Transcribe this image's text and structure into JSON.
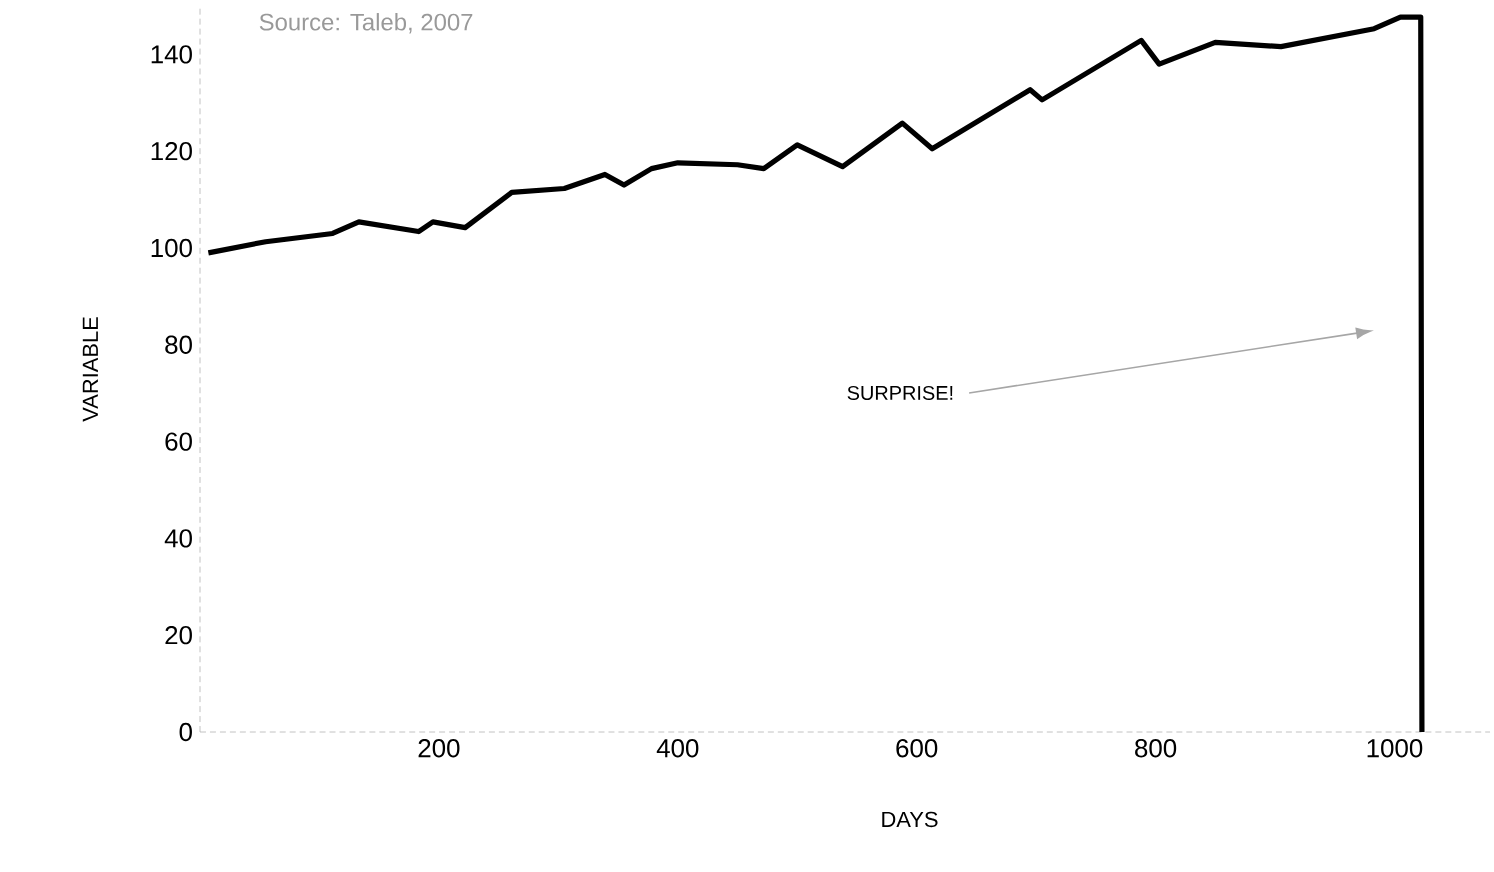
{
  "chart_data": {
    "type": "line",
    "xlabel": "DAYS",
    "ylabel": "VARIABLE",
    "annotations": [
      "Source: Taleb, 2007",
      "SURPRISE!"
    ],
    "x": [
      7,
      55,
      111,
      133,
      183,
      195,
      222,
      261,
      305,
      339,
      355,
      378,
      400,
      450,
      472,
      500,
      538,
      588,
      613,
      695,
      705,
      788,
      803,
      850,
      905,
      983,
      1005,
      1022,
      1023
    ],
    "series": [
      {
        "color": "#000000",
        "values": [
          99,
          101.3,
          103,
          105.4,
          103.4,
          105.4,
          104.2,
          111.5,
          112.3,
          115.2,
          113,
          116.4,
          117.6,
          117.2,
          116.4,
          121.3,
          116.8,
          125.8,
          120.5,
          132.7,
          130.6,
          142.9,
          138,
          142.5,
          141.6,
          145.3,
          147.7,
          147.7,
          0
        ]
      }
    ],
    "xlim": [
      0,
      1080
    ],
    "ylim": [
      0,
      150
    ],
    "xticks": [
      200,
      400,
      600,
      800,
      1000
    ],
    "yticks": [
      0,
      20,
      40,
      60,
      80,
      100,
      120,
      140
    ],
    "grid": false,
    "marker": "none",
    "line_style": "solid"
  }
}
